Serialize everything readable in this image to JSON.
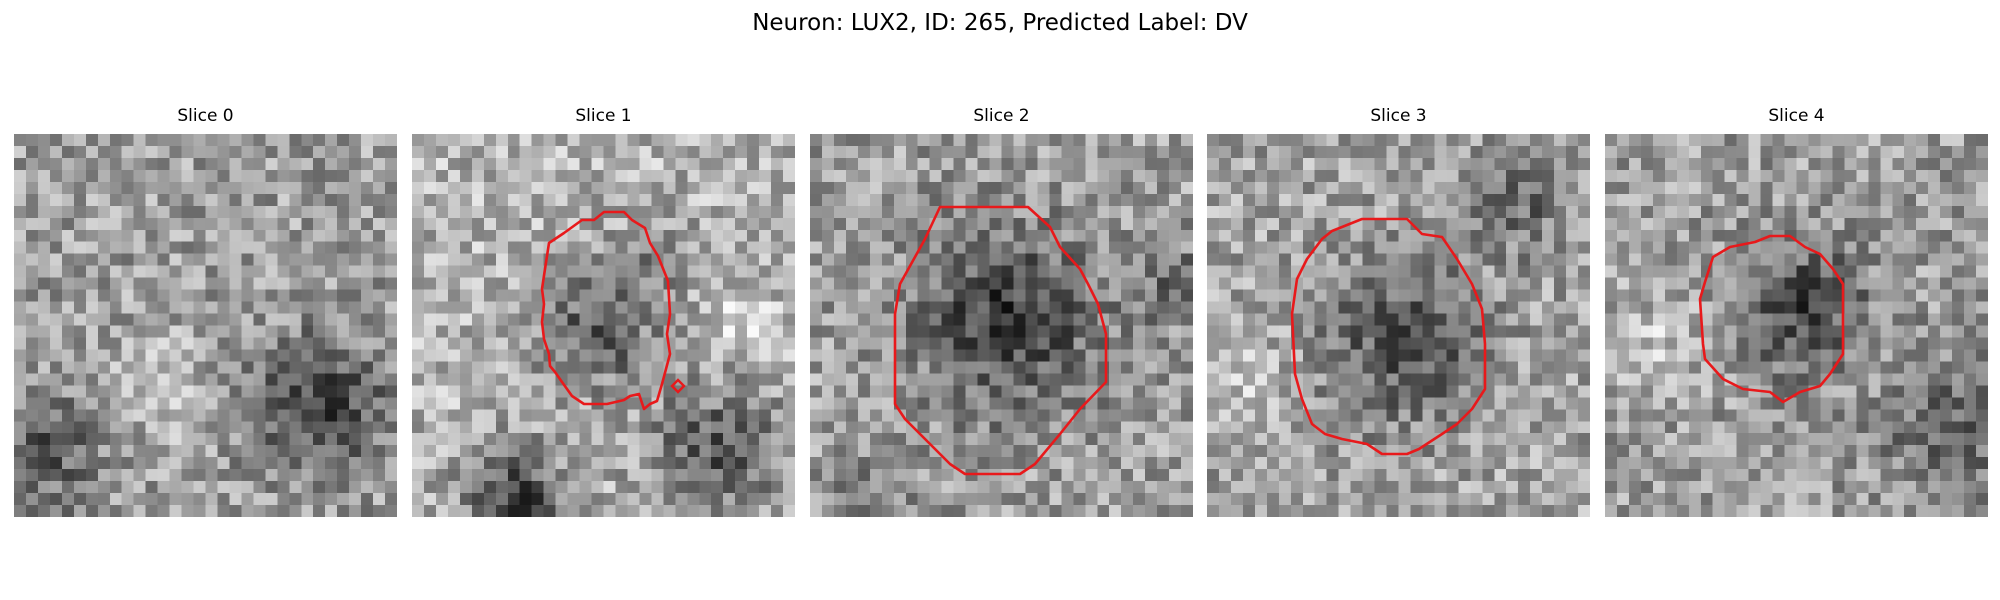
{
  "figure": {
    "title": "Neuron: LUX2, ID: 265, Predicted Label: DV"
  },
  "image_style": {
    "colormap": "grayscale",
    "contour_color": "#e8191b",
    "background": "#ffffff"
  },
  "slices": [
    {
      "title": "Slice 0",
      "has_contour": false
    },
    {
      "title": "Slice 1",
      "has_contour": true
    },
    {
      "title": "Slice 2",
      "has_contour": true
    },
    {
      "title": "Slice 3",
      "has_contour": true
    },
    {
      "title": "Slice 4",
      "has_contour": true
    }
  ]
}
